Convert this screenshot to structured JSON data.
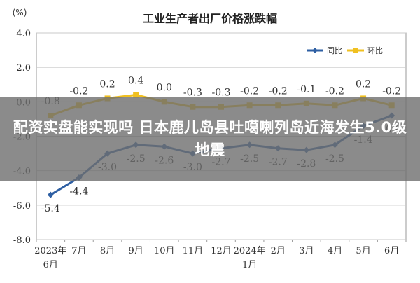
{
  "chart_data": {
    "type": "line",
    "title": "工业生产者出厂价格涨跌幅",
    "ylabel": "(%)",
    "ylim": [
      -8.0,
      4.0
    ],
    "yticks": [
      "4.0",
      "2.0",
      "0.0",
      "-2.0",
      "-4.0",
      "-6.0",
      "-8.0"
    ],
    "categories": [
      "2023年6月",
      "7月",
      "8月",
      "9月",
      "10月",
      "11月",
      "12月",
      "2024年1月",
      "2月",
      "3月",
      "4月",
      "5月",
      "6月"
    ],
    "grid": true,
    "legend_position": "top-right",
    "series": [
      {
        "name": "同比",
        "color": "#2e5fa3",
        "values": [
          -5.4,
          -4.4,
          -3.0,
          -2.5,
          -2.6,
          -3.0,
          -2.7,
          -2.5,
          -2.7,
          -2.8,
          -2.5,
          -1.4,
          -0.8
        ],
        "labels": [
          "-5.4",
          "-4.4",
          "-3.0",
          "-2.5",
          "-2.6",
          "-3.0",
          "-2.7",
          "-2.5",
          "-2.7",
          "-2.8",
          "-2.5",
          "-1.4",
          "-0.8"
        ]
      },
      {
        "name": "环比",
        "color": "#f0c020",
        "values": [
          -0.8,
          -0.2,
          0.2,
          0.4,
          0.0,
          -0.3,
          -0.3,
          -0.2,
          -0.2,
          -0.1,
          -0.2,
          0.2,
          -0.2
        ],
        "labels": [
          "-0.8",
          "-0.2",
          "0.2",
          "0.4",
          "0.0",
          "-0.3",
          "-0.3",
          "-0.2",
          "-0.2",
          "-0.1",
          "-0.2",
          "0.2",
          "-0.2"
        ]
      }
    ]
  },
  "overlay": {
    "headline": "配资实盘能实现吗 日本鹿儿岛县吐噶喇列岛近海发生5.0级地震"
  }
}
